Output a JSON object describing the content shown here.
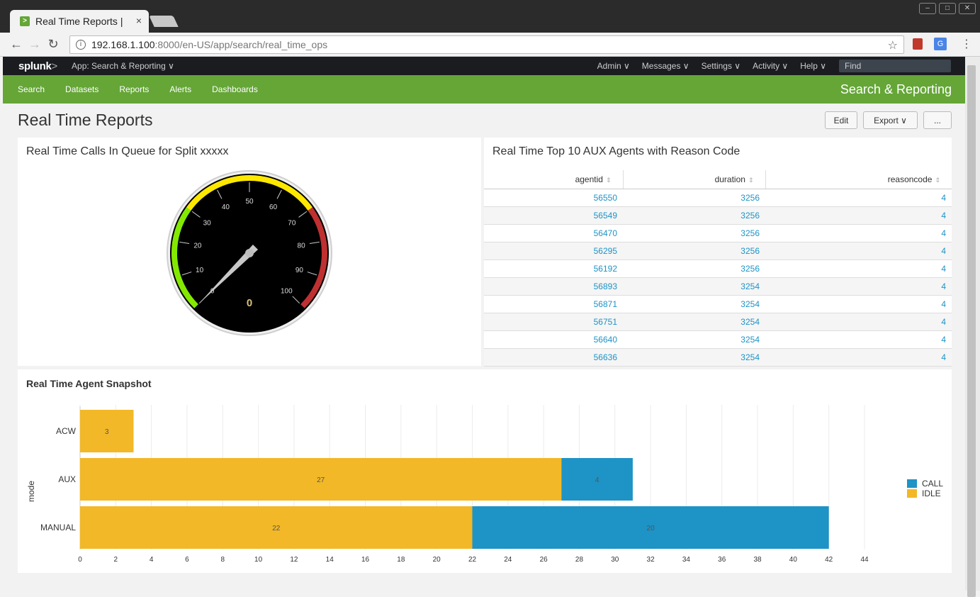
{
  "browser": {
    "tab_title": "Real Time Reports | ",
    "tab_close": "×",
    "address_host": "192.168.1.100",
    "address_rest": ":8000/en-US/app/search/real_time_ops",
    "favicon_glyph": ">",
    "ext_translate_glyph": "G"
  },
  "splunk": {
    "logo_text": "splunk",
    "logo_suffix": ">",
    "app_selector": "App: Search & Reporting ∨",
    "menu": [
      "Admin ∨",
      "Messages ∨",
      "Settings ∨",
      "Activity ∨",
      "Help ∨"
    ],
    "find_placeholder": "Find"
  },
  "appbar": {
    "nav": [
      "Search",
      "Datasets",
      "Reports",
      "Alerts",
      "Dashboards"
    ],
    "app_name": "Search & Reporting"
  },
  "dashboard": {
    "title": "Real Time Reports",
    "edit_label": "Edit",
    "export_label": "Export ∨",
    "more_label": "..."
  },
  "gauge_panel": {
    "title": "Real Time Calls In Queue for Split xxxxx",
    "value": 0,
    "min": 0,
    "max": 100,
    "ticks": [
      "0",
      "10",
      "20",
      "30",
      "40",
      "50",
      "60",
      "70",
      "80",
      "90",
      "100"
    ],
    "bands": [
      {
        "from": 0,
        "to": 30,
        "color": "#84e900"
      },
      {
        "from": 30,
        "to": 70,
        "color": "#ffe800"
      },
      {
        "from": 70,
        "to": 100,
        "color": "#bf3030"
      }
    ]
  },
  "table_panel": {
    "title": "Real Time Top 10 AUX Agents with Reason Code",
    "columns": [
      "agentid",
      "duration",
      "reasoncode"
    ],
    "rows": [
      [
        "56550",
        "3256",
        "4"
      ],
      [
        "56549",
        "3256",
        "4"
      ],
      [
        "56470",
        "3256",
        "4"
      ],
      [
        "56295",
        "3256",
        "4"
      ],
      [
        "56192",
        "3256",
        "4"
      ],
      [
        "56893",
        "3254",
        "4"
      ],
      [
        "56871",
        "3254",
        "4"
      ],
      [
        "56751",
        "3254",
        "4"
      ],
      [
        "56640",
        "3254",
        "4"
      ],
      [
        "56636",
        "3254",
        "4"
      ]
    ]
  },
  "chart_panel": {
    "title": "Real Time Agent Snapshot"
  },
  "chart_data": {
    "type": "bar",
    "orientation": "horizontal",
    "stacked": true,
    "categories": [
      "ACW",
      "AUX",
      "MANUAL"
    ],
    "series": [
      {
        "name": "IDLE",
        "color": "#f2b827",
        "values": [
          3,
          27,
          22
        ]
      },
      {
        "name": "CALL",
        "color": "#1e93c6",
        "values": [
          0,
          4,
          20
        ]
      }
    ],
    "ylabel": "mode",
    "xlim": [
      0,
      44
    ],
    "xticks": [
      0,
      2,
      4,
      6,
      8,
      10,
      12,
      14,
      16,
      18,
      20,
      22,
      24,
      26,
      28,
      30,
      32,
      34,
      36,
      38,
      40,
      42,
      44
    ],
    "legend": [
      "CALL",
      "IDLE"
    ],
    "legend_position": "right",
    "grid": true
  }
}
